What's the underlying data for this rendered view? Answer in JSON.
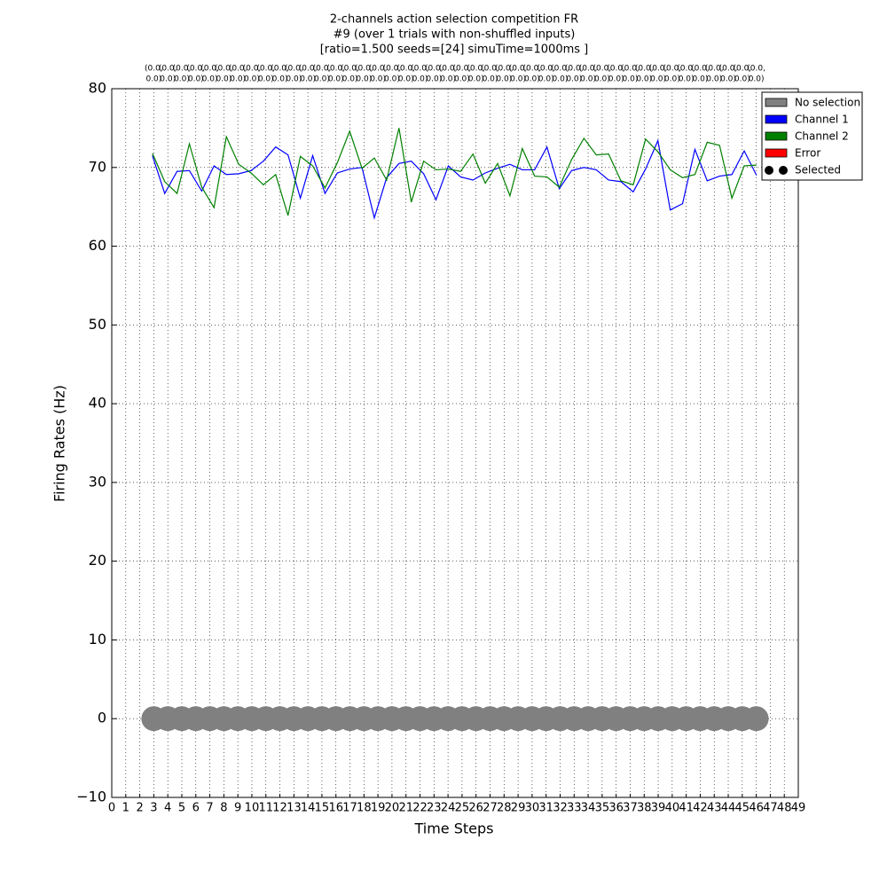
{
  "chart_data": {
    "type": "line",
    "title": [
      "2-channels action selection competition FR",
      "#9 (over 1 trials with non-shuffled inputs)",
      "[ratio=1.500 seeds=[24] simuTime=1000ms ]"
    ],
    "x_label": "Time Steps",
    "y_label": "Firing Rates (Hz)",
    "xlim": [
      0,
      49
    ],
    "xticks": [
      0,
      1,
      2,
      3,
      4,
      5,
      6,
      7,
      8,
      9,
      10,
      11,
      12,
      13,
      14,
      15,
      16,
      17,
      18,
      19,
      20,
      21,
      22,
      23,
      24,
      25,
      26,
      27,
      28,
      29,
      30,
      31,
      32,
      33,
      34,
      35,
      36,
      37,
      38,
      39,
      40,
      41,
      42,
      43,
      44,
      45,
      46,
      47,
      48,
      49
    ],
    "ylim": [
      -10,
      80
    ],
    "yticks": [
      {
        "value": -10,
        "label": "−10"
      },
      0,
      10,
      20,
      30,
      40,
      50,
      60,
      70,
      80
    ],
    "grid": true,
    "x": [
      2.9,
      3.78,
      4.66,
      5.54,
      6.42,
      7.3,
      8.18,
      9.06,
      9.94,
      10.82,
      11.7,
      12.58,
      13.46,
      14.34,
      15.22,
      16.1,
      16.98,
      17.86,
      18.74,
      19.62,
      20.5,
      21.38,
      22.26,
      23.14,
      24.02,
      24.9,
      25.78,
      26.66,
      27.54,
      28.42,
      29.3,
      30.18,
      31.06,
      31.94,
      32.82,
      33.7,
      34.58,
      35.46,
      36.34,
      37.22,
      38.1,
      38.98,
      39.86,
      40.74,
      41.62,
      42.5,
      43.38,
      44.26,
      45.14,
      46.02
    ],
    "series": [
      {
        "name": "Channel 1",
        "color": "#0000ff",
        "values": [
          71.5,
          66.7,
          69.5,
          69.6,
          67.0,
          70.2,
          69.1,
          69.2,
          69.6,
          70.8,
          72.6,
          71.6,
          66.1,
          71.5,
          66.7,
          69.3,
          69.8,
          70.0,
          63.6,
          68.7,
          70.5,
          70.8,
          69.2,
          65.9,
          70.2,
          68.8,
          68.4,
          69.3,
          69.9,
          70.4,
          69.7,
          69.7,
          72.6,
          67.3,
          69.6,
          70.0,
          69.7,
          68.4,
          68.2,
          66.9,
          69.8,
          73.4,
          64.6,
          65.4,
          72.3,
          68.3,
          68.9,
          69.1,
          72.1,
          69.0
        ]
      },
      {
        "name": "Channel 2",
        "color": "#008000",
        "values": [
          71.8,
          68.2,
          66.7,
          73.0,
          67.5,
          64.9,
          73.9,
          70.4,
          69.3,
          67.8,
          69.1,
          63.9,
          71.4,
          70.2,
          67.4,
          70.6,
          74.6,
          69.9,
          71.2,
          68.4,
          75.0,
          65.6,
          70.8,
          69.7,
          69.8,
          69.5,
          71.7,
          68.0,
          70.5,
          66.4,
          72.4,
          68.9,
          68.8,
          67.5,
          71.0,
          73.7,
          71.6,
          71.7,
          68.3,
          67.8,
          73.6,
          72.0,
          69.7,
          68.7,
          69.1,
          73.2,
          72.8,
          66.1,
          70.2,
          70.3
        ]
      }
    ],
    "selected": {
      "name": "Selected",
      "color": "#808080",
      "legend_color": "#000000",
      "x": [
        3,
        4,
        5,
        6,
        7,
        8,
        9,
        10,
        11,
        12,
        13,
        14,
        15,
        16,
        17,
        18,
        19,
        20,
        21,
        22,
        23,
        24,
        25,
        26,
        27,
        28,
        29,
        30,
        31,
        32,
        33,
        34,
        35,
        36,
        37,
        38,
        39,
        40,
        41,
        42,
        43,
        44,
        45,
        46
      ],
      "values": [
        0,
        0,
        0,
        0,
        0,
        0,
        0,
        0,
        0,
        0,
        0,
        0,
        0,
        0,
        0,
        0,
        0,
        0,
        0,
        0,
        0,
        0,
        0,
        0,
        0,
        0,
        0,
        0,
        0,
        0,
        0,
        0,
        0,
        0,
        0,
        0,
        0,
        0,
        0,
        0,
        0,
        0,
        0,
        0
      ]
    },
    "top_labels": [
      [
        "(0.0,",
        "0.0)"
      ],
      [
        "(0.0,",
        "0.0)"
      ],
      [
        "(0.0,",
        "0.0)"
      ],
      [
        "(0.0,",
        "0.0)"
      ],
      [
        "(0.0,",
        "0.0)"
      ],
      [
        "(0.0,",
        "0.0)"
      ],
      [
        "(0.0,",
        "0.0)"
      ],
      [
        "(0.0,",
        "0.0)"
      ],
      [
        "(0.0,",
        "0.0)"
      ],
      [
        "(0.0,",
        "0.0)"
      ],
      [
        "(0.0,",
        "0.0)"
      ],
      [
        "(0.0,",
        "0.0)"
      ],
      [
        "(0.0,",
        "0.0)"
      ],
      [
        "(0.0,",
        "0.0)"
      ],
      [
        "(0.0,",
        "0.0)"
      ],
      [
        "(0.0,",
        "0.0)"
      ],
      [
        "(0.0,",
        "0.0)"
      ],
      [
        "(0.0,",
        "0.0)"
      ],
      [
        "(0.0,",
        "0.0)"
      ],
      [
        "(0.0,",
        "0.0)"
      ],
      [
        "(0.0,",
        "0.0)"
      ],
      [
        "(0.0,",
        "0.0)"
      ],
      [
        "(0.0,",
        "0.0)"
      ],
      [
        "(0.0,",
        "0.0)"
      ],
      [
        "(0.0,",
        "0.0)"
      ],
      [
        "(0.0,",
        "0.0)"
      ],
      [
        "(0.0,",
        "0.0)"
      ],
      [
        "(0.0,",
        "0.0)"
      ],
      [
        "(0.0,",
        "0.0)"
      ],
      [
        "(0.0,",
        "0.0)"
      ],
      [
        "(0.0,",
        "0.0)"
      ],
      [
        "(0.0,",
        "0.0)"
      ],
      [
        "(0.0,",
        "0.0)"
      ],
      [
        "(0.0,",
        "0.0)"
      ],
      [
        "(0.0,",
        "0.0)"
      ],
      [
        "(0.0,",
        "0.0)"
      ],
      [
        "(0.0,",
        "0.0)"
      ],
      [
        "(0.0,",
        "0.0)"
      ],
      [
        "(0.0,",
        "0.0)"
      ],
      [
        "(0.0,",
        "0.0)"
      ],
      [
        "(0.0,",
        "0.0)"
      ],
      [
        "(0.0,",
        "0.0)"
      ],
      [
        "(0.0,",
        "0.0)"
      ],
      [
        "(0.0,",
        "0.0)"
      ]
    ],
    "legend_patches": [
      {
        "name": "No selection",
        "color": "#808080"
      },
      {
        "name": "Error",
        "color": "#ff0000"
      }
    ]
  }
}
